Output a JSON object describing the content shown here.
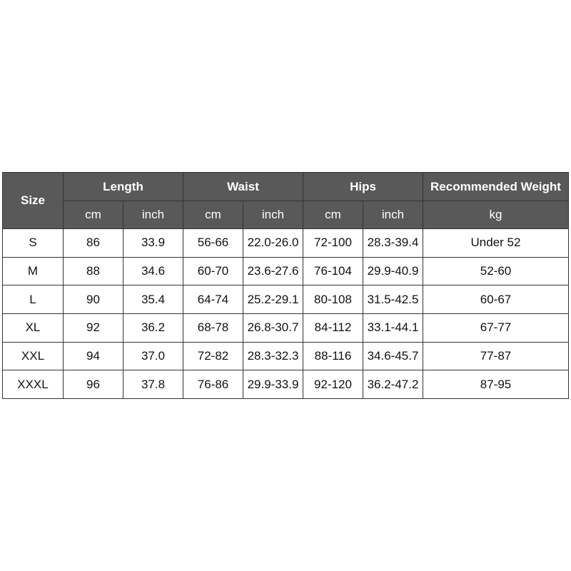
{
  "header": {
    "size": "Size",
    "groups": [
      "Length",
      "Waist",
      "Hips",
      "Recommended Weight"
    ],
    "units": [
      "cm",
      "inch",
      "cm",
      "inch",
      "cm",
      "inch",
      "kg"
    ]
  },
  "colors": {
    "header_bg": "#595959",
    "header_text": "#ffffff",
    "border": "#333333"
  },
  "rows": [
    [
      "S",
      "86",
      "33.9",
      "56-66",
      "22.0-26.0",
      "72-100",
      "28.3-39.4",
      "Under 52"
    ],
    [
      "M",
      "88",
      "34.6",
      "60-70",
      "23.6-27.6",
      "76-104",
      "29.9-40.9",
      "52-60"
    ],
    [
      "L",
      "90",
      "35.4",
      "64-74",
      "25.2-29.1",
      "80-108",
      "31.5-42.5",
      "60-67"
    ],
    [
      "XL",
      "92",
      "36.2",
      "68-78",
      "26.8-30.7",
      "84-112",
      "33.1-44.1",
      "67-77"
    ],
    [
      "XXL",
      "94",
      "37.0",
      "72-82",
      "28.3-32.3",
      "88-116",
      "34.6-45.7",
      "77-87"
    ],
    [
      "XXXL",
      "96",
      "37.8",
      "76-86",
      "29.9-33.9",
      "92-120",
      "36.2-47.2",
      "87-95"
    ]
  ]
}
